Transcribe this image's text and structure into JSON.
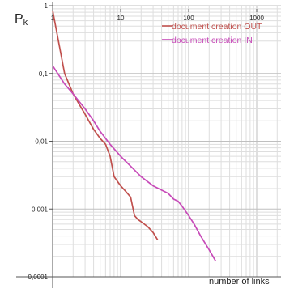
{
  "chart_data": {
    "type": "line",
    "x_scale": "log",
    "y_scale": "log",
    "xlim": [
      1,
      1000
    ],
    "ylim": [
      0.0001,
      1
    ],
    "grid": true,
    "ylabel": "P",
    "ylabel_sub": "k",
    "xlabel": "number of links",
    "x_ticks": [
      "1",
      "10",
      "100",
      "1000"
    ],
    "y_ticks": [
      "1",
      "0,1",
      "0,01",
      "0,001",
      "0,0001"
    ],
    "legend_position": "top-right",
    "series": [
      {
        "name": "document creation OUT",
        "color": "#c0504d",
        "x": [
          1,
          1.5,
          2,
          3,
          4,
          5,
          6,
          7,
          8,
          10,
          12,
          14,
          16,
          18,
          20,
          25,
          30,
          35
        ],
        "y": [
          0.85,
          0.1,
          0.05,
          0.025,
          0.015,
          0.011,
          0.009,
          0.006,
          0.003,
          0.0022,
          0.0018,
          0.0015,
          0.0008,
          0.0007,
          0.00065,
          0.00055,
          0.00045,
          0.00035
        ]
      },
      {
        "name": "document creation IN",
        "color": "#c74ab8",
        "x": [
          1,
          1.5,
          2,
          3,
          4,
          5,
          7,
          10,
          15,
          20,
          30,
          40,
          50,
          60,
          70,
          80,
          100,
          120,
          150,
          200,
          250
        ],
        "y": [
          0.13,
          0.07,
          0.05,
          0.03,
          0.02,
          0.014,
          0.009,
          0.006,
          0.004,
          0.003,
          0.0022,
          0.0019,
          0.0017,
          0.0014,
          0.0013,
          0.0011,
          0.0008,
          0.0006,
          0.0004,
          0.00025,
          0.00017
        ]
      }
    ]
  }
}
